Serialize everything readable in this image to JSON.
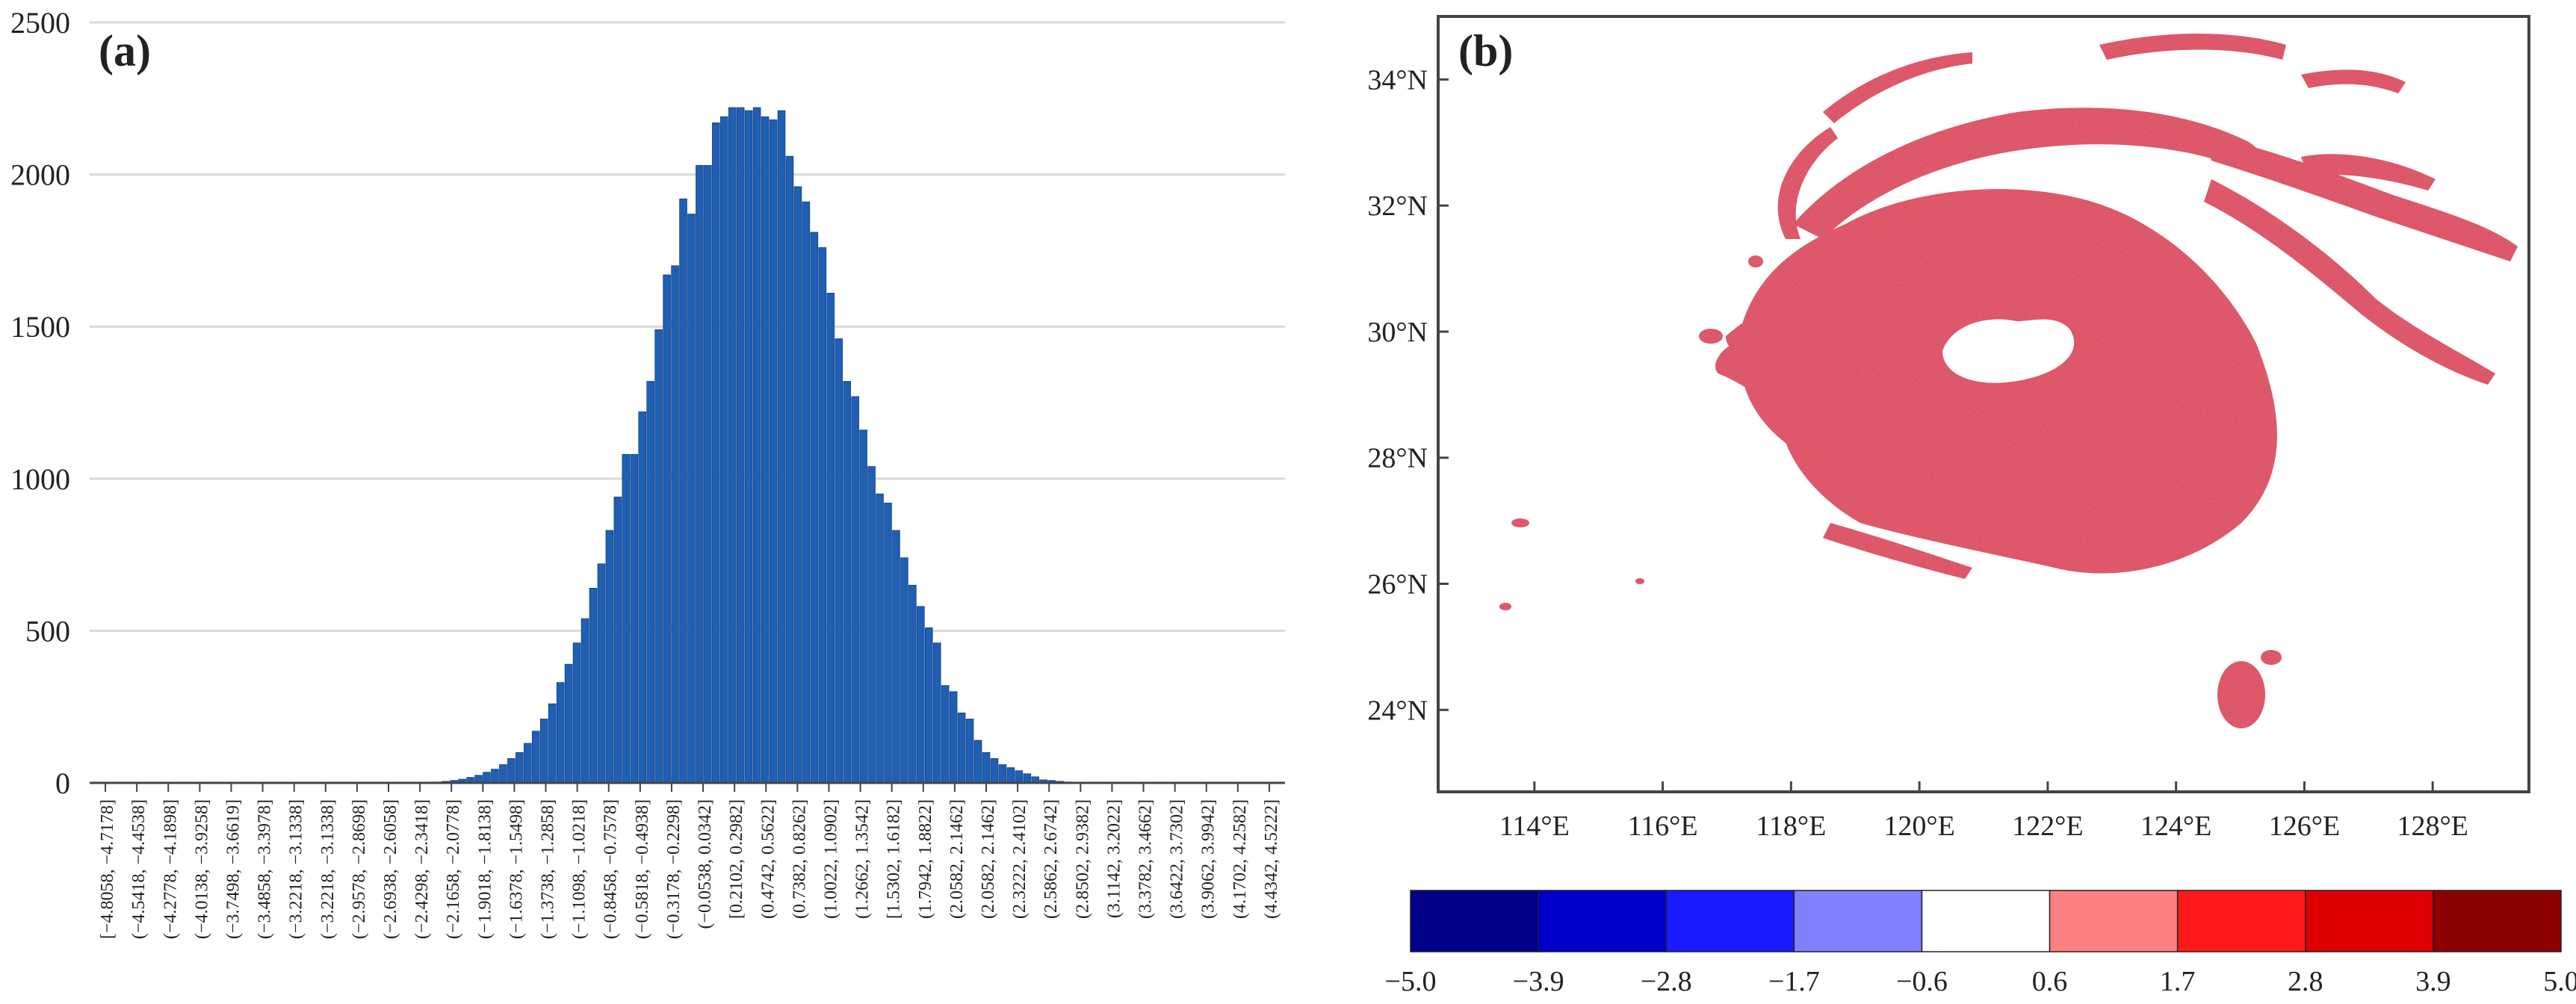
{
  "colors": {
    "bar": "#1f5fb4",
    "bar_edge": "#123f80",
    "grid": "#d9d9d9",
    "frame": "#444444",
    "noise_red": "#dd2a2e",
    "noise_blue": "#4848b8",
    "noise_pink": "#f07c84"
  },
  "chart_data": [
    {
      "type": "bar",
      "panel_label": "(a)",
      "title": "",
      "xlabel": "",
      "ylabel": "",
      "ylim": [
        0,
        2500
      ],
      "yticks": [
        0,
        500,
        1000,
        1500,
        2000,
        2500
      ],
      "grid": true,
      "xtick_labels": [
        "[−4.8058, −4.7178]",
        "(−4.5418, −4.4538]",
        "(−4.2778, −4.1898]",
        "(−4.0138, −3.9258]",
        "(−3.7498, −3.6619]",
        "(−3.4858, −3.3978]",
        "(−3.2218, −3.1338]",
        "(−3.2218, −3.1338]",
        "(−2.9578, −2.8698]",
        "(−2.6938, −2.6058]",
        "(−2.4298, −2.3418]",
        "(−2.1658, −2.0778]",
        "(−1.9018, −1.8138]",
        "(−1.6378, −1.5498]",
        "(−1.3738, −1.2858]",
        "(−1.1098, −1.0218]",
        "(−0.8458, −0.7578]",
        "(−0.5818, −0.4938]",
        "(−0.3178, −0.2298]",
        "(−0.0538, 0.0342]",
        "[0.2102, 0.2982]",
        "(0.4742, 0.5622]",
        "(0.7382, 0.8262]",
        "(1.0022, 1.0902]",
        "(1.2662, 1.3542]",
        "[1.5302, 1.6182]",
        "(1.7942, 1.8822]",
        "(2.0582, 2.1462]",
        "(2.0582, 2.1462]",
        "(2.3222, 2.4102]",
        "(2.5862, 2.6742]",
        "(2.8502, 2.9382]",
        "(3.1142, 3.2022]",
        "(3.3782, 3.4662]",
        "(3.6422, 3.7302]",
        "(3.9062, 3.9942]",
        "(4.1702, 4.2582]",
        "(4.4342, 4.5222]"
      ],
      "values": [
        0,
        0,
        0,
        0,
        0,
        0,
        0,
        0,
        0,
        0,
        0,
        0,
        0,
        0,
        0,
        0,
        0,
        0,
        0,
        0,
        0,
        0,
        0,
        0,
        0,
        0,
        0,
        0,
        0,
        0,
        0,
        0,
        0,
        0,
        0,
        0,
        0,
        0,
        0,
        0,
        0,
        2,
        3,
        5,
        8,
        12,
        18,
        25,
        35,
        45,
        60,
        80,
        100,
        130,
        170,
        210,
        260,
        330,
        390,
        460,
        540,
        640,
        720,
        830,
        940,
        1080,
        1080,
        1220,
        1320,
        1490,
        1670,
        1700,
        1920,
        1870,
        2030,
        2030,
        2170,
        2190,
        2220,
        2220,
        2210,
        2220,
        2190,
        2180,
        2210,
        2060,
        1960,
        1910,
        1810,
        1760,
        1610,
        1460,
        1320,
        1270,
        1160,
        1040,
        950,
        920,
        830,
        740,
        650,
        580,
        510,
        460,
        320,
        300,
        230,
        210,
        140,
        100,
        80,
        60,
        50,
        40,
        30,
        20,
        10,
        8,
        5,
        3,
        0,
        0,
        0,
        0,
        0,
        0,
        0,
        0,
        0,
        0,
        0,
        0,
        0,
        0,
        0,
        0,
        0,
        0,
        0,
        0,
        0,
        0,
        0,
        0,
        0,
        0
      ]
    },
    {
      "type": "heatmap",
      "panel_label": "(b)",
      "title": "",
      "xlabel": "",
      "ylabel": "",
      "xlim": [
        112.5,
        129.5
      ],
      "ylim": [
        22.7,
        35
      ],
      "xticks": [
        114,
        116,
        118,
        120,
        122,
        124,
        126,
        128
      ],
      "yticks": [
        24,
        26,
        28,
        30,
        32,
        34
      ],
      "xtick_labels": [
        "114°E",
        "116°E",
        "118°E",
        "120°E",
        "122°E",
        "124°E",
        "126°E",
        "128°E"
      ],
      "ytick_labels": [
        "24°N",
        "26°N",
        "28°N",
        "30°N",
        "32°N",
        "34°N"
      ],
      "colorbar": {
        "ticks": [
          -5.0,
          -3.9,
          -2.8,
          -1.7,
          -0.6,
          0.6,
          1.7,
          2.8,
          3.9,
          5.0
        ],
        "tick_labels": [
          "−5.0",
          "−3.9",
          "−2.8",
          "−1.7",
          "−0.6",
          "0.6",
          "1.7",
          "2.8",
          "3.9",
          "5.0"
        ],
        "colors": [
          "#00008b",
          "#0000cd",
          "#1a1aff",
          "#8080ff",
          "#ffffff",
          "#ff8080",
          "#ff1a1a",
          "#dc0000",
          "#8b0000"
        ]
      }
    }
  ]
}
